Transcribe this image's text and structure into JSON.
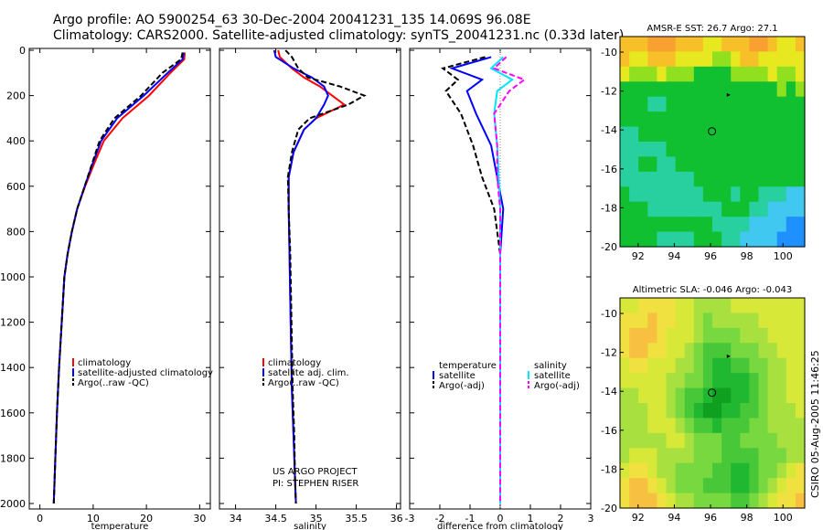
{
  "header": {
    "line1": "Argo profile: AO 5900254_63 30-Dec-2004 20041231_135 14.069S 96.08E",
    "line2": "Climatology: CARS2000. Satellite-adjusted climatology: synTS_20041231.nc (0.33d later)"
  },
  "side_label": "CSIRO 05-Aug-2005 11:46:25",
  "colors": {
    "climatology": "#ff0000",
    "satellite": "#0000ff",
    "argo": "#000000",
    "sal_satellite": "#00e5ff",
    "sal_argo": "#ff00ff"
  },
  "chart_data": [
    {
      "type": "line",
      "xlabel": "temperature",
      "ylim": [
        2000,
        0
      ],
      "yticks": [
        0,
        200,
        400,
        600,
        800,
        1000,
        1200,
        1400,
        1600,
        1800,
        2000
      ],
      "xlim": [
        -2,
        32
      ],
      "xticks": [
        0,
        10,
        20,
        30
      ],
      "legend": [
        "climatology",
        "satellite-adjusted climatology",
        "Argo(..raw -QC)"
      ],
      "series": [
        {
          "name": "climatology",
          "style": "solid",
          "color": "#ff0000",
          "x": [
            27.2,
            27.1,
            24.5,
            20.5,
            15.5,
            12.0,
            10.2,
            8.5,
            7.0,
            6.0,
            5.2,
            4.6,
            4.1,
            3.6,
            3.2,
            2.9,
            2.6
          ],
          "y": [
            10,
            40,
            100,
            200,
            300,
            400,
            500,
            600,
            700,
            800,
            900,
            1000,
            1200,
            1400,
            1600,
            1800,
            2000
          ]
        },
        {
          "name": "satellite-adjusted climatology",
          "style": "solid",
          "color": "#0000ff",
          "x": [
            27.0,
            26.8,
            24.0,
            19.5,
            14.5,
            11.5,
            9.9,
            8.4,
            7.0,
            6.0,
            5.2,
            4.6,
            4.1,
            3.6,
            3.2,
            2.9,
            2.6
          ],
          "y": [
            10,
            40,
            100,
            200,
            300,
            400,
            500,
            600,
            700,
            800,
            900,
            1000,
            1200,
            1400,
            1600,
            1800,
            2000
          ]
        },
        {
          "name": "Argo(..raw -QC)",
          "style": "dashed",
          "color": "#000000",
          "x": [
            26.8,
            26.5,
            23.0,
            19.0,
            14.0,
            11.2,
            9.8,
            8.4,
            7.0,
            6.0,
            5.2,
            4.6,
            4.1,
            3.6,
            3.2,
            2.9,
            2.6
          ],
          "y": [
            10,
            40,
            100,
            200,
            300,
            400,
            500,
            600,
            700,
            800,
            900,
            1000,
            1200,
            1400,
            1600,
            1800,
            2000
          ]
        }
      ]
    },
    {
      "type": "line",
      "xlabel": "salinity",
      "ylim": [
        2000,
        0
      ],
      "xlim": [
        33.8,
        36.05
      ],
      "xticks": [
        34,
        34.5,
        35,
        35.5,
        36
      ],
      "legend": [
        "climatology",
        "satellite adj. clim.",
        "Argo(..raw -QC)"
      ],
      "annotation": [
        "US ARGO PROJECT",
        "PI: STEPHEN RISER"
      ],
      "series": [
        {
          "name": "climatology",
          "style": "solid",
          "color": "#ff0000",
          "x": [
            34.53,
            34.55,
            34.7,
            34.85,
            35.05,
            35.2,
            35.35,
            35.0,
            34.85,
            34.72,
            34.66,
            34.66,
            34.67,
            34.68,
            34.69,
            34.7,
            34.72,
            34.74,
            34.75
          ],
          "y": [
            0,
            30,
            80,
            120,
            160,
            200,
            240,
            300,
            350,
            450,
            560,
            700,
            900,
            1100,
            1300,
            1500,
            1700,
            1900,
            2000
          ]
        },
        {
          "name": "satellite adj. clim.",
          "style": "solid",
          "color": "#0000ff",
          "x": [
            34.48,
            34.5,
            34.72,
            34.95,
            35.1,
            35.15,
            35.1,
            35.0,
            34.85,
            34.72,
            34.66,
            34.66,
            34.67,
            34.68,
            34.69,
            34.7,
            34.72,
            34.74,
            34.75
          ],
          "y": [
            0,
            30,
            80,
            120,
            160,
            200,
            240,
            300,
            350,
            450,
            560,
            700,
            900,
            1100,
            1300,
            1500,
            1700,
            1900,
            2000
          ]
        },
        {
          "name": "Argo(..raw -QC)",
          "style": "dashed",
          "color": "#000000",
          "x": [
            34.62,
            34.7,
            34.78,
            34.9,
            35.3,
            35.6,
            35.4,
            34.92,
            34.78,
            34.7,
            34.65,
            34.66,
            34.68,
            34.69,
            34.7,
            34.71,
            34.73,
            34.74,
            34.75
          ],
          "y": [
            0,
            30,
            80,
            120,
            160,
            200,
            240,
            300,
            350,
            450,
            560,
            700,
            900,
            1100,
            1300,
            1500,
            1700,
            1900,
            2000
          ]
        }
      ]
    },
    {
      "type": "line",
      "xlabel": "difference from climatology",
      "ylim": [
        2000,
        0
      ],
      "xlim": [
        -3,
        3
      ],
      "xticks": [
        -3,
        -2,
        -1,
        0,
        1,
        2,
        3
      ],
      "legend_left": {
        "heading": "temperature",
        "items": [
          "satellite",
          "Argo(-adj)"
        ]
      },
      "legend_right": {
        "heading": "salinity",
        "items": [
          "satellite",
          "Argo(-adj)"
        ]
      },
      "series": [
        {
          "name": "temperature satellite",
          "style": "solid",
          "color": "#0000ff",
          "x": [
            -0.3,
            -1.6,
            -0.6,
            -1.1,
            -0.8,
            -0.3,
            -0.1,
            0.1,
            0.0,
            0.0,
            0.0,
            0.0
          ],
          "y": [
            30,
            80,
            130,
            180,
            280,
            420,
            560,
            700,
            900,
            1200,
            1600,
            2000
          ]
        },
        {
          "name": "temperature Argo(-adj)",
          "style": "dashed",
          "color": "#000000",
          "x": [
            -0.5,
            -1.9,
            -1.4,
            -1.8,
            -1.3,
            -0.9,
            -0.6,
            -0.2,
            0.0,
            0.0,
            0.0,
            0.0
          ],
          "y": [
            30,
            80,
            130,
            180,
            280,
            420,
            560,
            700,
            900,
            1200,
            1600,
            2000
          ]
        },
        {
          "name": "salinity satellite",
          "style": "solid",
          "color": "#00e5ff",
          "x": [
            0.1,
            -0.3,
            0.4,
            -0.1,
            -0.2,
            -0.1,
            -0.05,
            0.0,
            0.0,
            0.0,
            0.0,
            0.0
          ],
          "y": [
            30,
            80,
            130,
            180,
            280,
            420,
            560,
            700,
            900,
            1200,
            1600,
            2000
          ]
        },
        {
          "name": "salinity Argo(-adj)",
          "style": "dashed",
          "color": "#ff00ff",
          "x": [
            0.2,
            -0.2,
            0.8,
            0.3,
            -0.2,
            -0.1,
            -0.1,
            0.0,
            0.0,
            0.0,
            0.0,
            0.0
          ],
          "y": [
            30,
            80,
            130,
            180,
            280,
            420,
            560,
            700,
            900,
            1200,
            1600,
            2000
          ]
        }
      ]
    },
    {
      "type": "heatmap",
      "title": "AMSR-E SST: 26.7 Argo: 27.1",
      "xlim": [
        91,
        101.2
      ],
      "ylim": [
        -20,
        -9.2
      ],
      "xticks": [
        92,
        94,
        96,
        98,
        100
      ],
      "yticks": [
        -10,
        -12,
        -14,
        -16,
        -18,
        -20
      ],
      "profile_marker": [
        96.08,
        -14.07
      ],
      "float_marker": [
        97.0,
        -12.2
      ],
      "palette": [
        "#1e90ff",
        "#40c8f0",
        "#28d0a0",
        "#10c030",
        "#90e020",
        "#e8e820",
        "#f8c028",
        "#f8a030"
      ],
      "grid": [
        [
          6,
          6,
          6,
          7,
          7,
          7,
          6,
          6,
          6,
          5,
          5,
          6,
          6,
          6,
          7,
          7,
          6,
          5,
          5,
          6
        ],
        [
          6,
          5,
          5,
          6,
          6,
          6,
          5,
          5,
          5,
          5,
          4,
          4,
          5,
          6,
          6,
          5,
          5,
          5,
          5,
          5
        ],
        [
          5,
          4,
          4,
          4,
          5,
          4,
          4,
          4,
          3,
          3,
          3,
          3,
          4,
          4,
          4,
          4,
          5,
          4,
          4,
          5
        ],
        [
          3,
          3,
          3,
          3,
          3,
          3,
          3,
          3,
          3,
          3,
          3,
          3,
          3,
          3,
          3,
          3,
          3,
          4,
          3,
          4
        ],
        [
          3,
          3,
          3,
          2,
          2,
          3,
          3,
          3,
          3,
          3,
          3,
          3,
          3,
          3,
          3,
          3,
          3,
          3,
          3,
          3
        ],
        [
          3,
          3,
          3,
          3,
          3,
          3,
          3,
          3,
          3,
          3,
          3,
          3,
          3,
          3,
          3,
          3,
          3,
          3,
          3,
          3
        ],
        [
          2,
          2,
          3,
          3,
          3,
          3,
          3,
          3,
          3,
          3,
          3,
          3,
          3,
          3,
          3,
          3,
          3,
          3,
          3,
          3
        ],
        [
          2,
          2,
          2,
          2,
          2,
          3,
          3,
          3,
          3,
          3,
          3,
          3,
          3,
          3,
          3,
          3,
          3,
          3,
          3,
          3
        ],
        [
          2,
          2,
          3,
          3,
          2,
          2,
          3,
          3,
          3,
          3,
          3,
          3,
          3,
          3,
          3,
          3,
          3,
          3,
          3,
          3
        ],
        [
          2,
          2,
          2,
          2,
          2,
          2,
          2,
          2,
          3,
          3,
          3,
          3,
          3,
          3,
          3,
          3,
          3,
          3,
          3,
          3
        ],
        [
          3,
          2,
          2,
          2,
          2,
          2,
          2,
          2,
          2,
          3,
          3,
          3,
          2,
          3,
          3,
          2,
          2,
          2,
          1,
          1
        ],
        [
          3,
          3,
          3,
          2,
          2,
          2,
          2,
          2,
          2,
          2,
          2,
          3,
          3,
          3,
          2,
          2,
          1,
          1,
          1,
          1
        ],
        [
          3,
          3,
          3,
          3,
          3,
          3,
          3,
          3,
          3,
          3,
          2,
          2,
          2,
          2,
          1,
          1,
          1,
          1,
          0,
          0
        ],
        [
          3,
          3,
          3,
          3,
          2,
          2,
          2,
          2,
          3,
          3,
          3,
          2,
          2,
          1,
          1,
          1,
          1,
          0,
          0,
          0
        ]
      ]
    },
    {
      "type": "heatmap",
      "title": "Altimetric SLA: -0.046 Argo: -0.043",
      "xlim": [
        91,
        101.2
      ],
      "ylim": [
        -20,
        -9.2
      ],
      "xticks": [
        92,
        94,
        96,
        98,
        100
      ],
      "yticks": [
        -10,
        -12,
        -14,
        -16,
        -18,
        -20
      ],
      "profile_marker": [
        96.08,
        -14.07
      ],
      "float_marker": [
        97.0,
        -12.2
      ],
      "palette": [
        "#10a020",
        "#20b830",
        "#48c838",
        "#78d840",
        "#a8e040",
        "#d8e838",
        "#f0e040",
        "#f8c040"
      ],
      "grid": [
        [
          5,
          5,
          6,
          6,
          6,
          6,
          5,
          5,
          4,
          4,
          4,
          4,
          5,
          5,
          5,
          5,
          5,
          5,
          5,
          5
        ],
        [
          6,
          6,
          6,
          7,
          6,
          6,
          5,
          5,
          4,
          3,
          4,
          4,
          4,
          4,
          4,
          5,
          5,
          5,
          5,
          5
        ],
        [
          6,
          7,
          7,
          7,
          6,
          5,
          5,
          5,
          4,
          3,
          3,
          3,
          3,
          4,
          4,
          4,
          5,
          5,
          5,
          5
        ],
        [
          6,
          7,
          7,
          6,
          6,
          5,
          5,
          4,
          3,
          2,
          2,
          2,
          3,
          3,
          3,
          4,
          4,
          5,
          5,
          5
        ],
        [
          5,
          6,
          6,
          5,
          5,
          5,
          4,
          4,
          3,
          2,
          1,
          1,
          2,
          2,
          3,
          3,
          4,
          4,
          5,
          5
        ],
        [
          5,
          5,
          5,
          5,
          5,
          4,
          4,
          3,
          3,
          2,
          1,
          1,
          1,
          1,
          2,
          3,
          4,
          4,
          5,
          5
        ],
        [
          4,
          4,
          5,
          5,
          5,
          4,
          3,
          2,
          2,
          1,
          0,
          0,
          1,
          1,
          2,
          3,
          4,
          4,
          5,
          5
        ],
        [
          4,
          4,
          4,
          5,
          5,
          4,
          3,
          2,
          1,
          0,
          0,
          1,
          1,
          2,
          2,
          3,
          4,
          4,
          4,
          5
        ],
        [
          4,
          4,
          4,
          5,
          5,
          5,
          4,
          3,
          2,
          2,
          1,
          2,
          2,
          2,
          3,
          3,
          4,
          4,
          4,
          4
        ],
        [
          4,
          4,
          4,
          4,
          4,
          5,
          5,
          4,
          3,
          3,
          3,
          2,
          2,
          3,
          3,
          3,
          3,
          4,
          4,
          4
        ],
        [
          4,
          5,
          5,
          5,
          4,
          4,
          4,
          4,
          3,
          3,
          3,
          2,
          2,
          2,
          2,
          3,
          3,
          3,
          4,
          4
        ],
        [
          5,
          6,
          6,
          5,
          4,
          4,
          3,
          3,
          3,
          3,
          2,
          2,
          1,
          1,
          2,
          3,
          3,
          4,
          5,
          6
        ],
        [
          6,
          7,
          7,
          6,
          5,
          4,
          3,
          3,
          3,
          2,
          2,
          2,
          1,
          1,
          2,
          3,
          4,
          5,
          6,
          6
        ],
        [
          6,
          7,
          7,
          7,
          6,
          5,
          4,
          4,
          3,
          3,
          3,
          3,
          2,
          2,
          3,
          4,
          5,
          6,
          6,
          7
        ]
      ]
    }
  ]
}
